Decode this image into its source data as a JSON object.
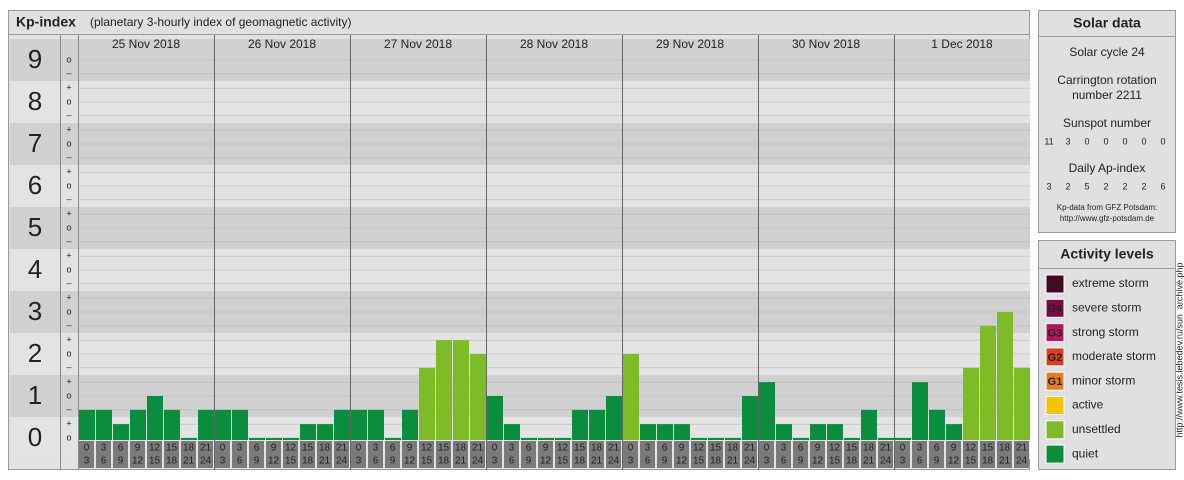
{
  "header": {
    "title": "Kp-index",
    "subtitle": "(planetary 3-hourly index of geomagnetic activity)"
  },
  "chart_data": {
    "type": "bar",
    "dates": [
      "25 Nov 2018",
      "26 Nov 2018",
      "27 Nov 2018",
      "28 Nov 2018",
      "29 Nov 2018",
      "30 Nov 2018",
      "1 Dec 2018"
    ],
    "hour_bins": [
      [
        "0",
        "3"
      ],
      [
        "3",
        "6"
      ],
      [
        "6",
        "9"
      ],
      [
        "9",
        "12"
      ],
      [
        "12",
        "15"
      ],
      [
        "15",
        "18"
      ],
      [
        "18",
        "21"
      ],
      [
        "21",
        "24"
      ]
    ],
    "values": [
      [
        0.67,
        0.67,
        0.33,
        0.67,
        1,
        0.67,
        0,
        0.67
      ],
      [
        0.67,
        0.67,
        0,
        0,
        0,
        0.33,
        0.33,
        0.67
      ],
      [
        0.67,
        0.67,
        0,
        0.67,
        1.67,
        2.33,
        2.33,
        2
      ],
      [
        1,
        0.33,
        0,
        0,
        0,
        0.67,
        0.67,
        1
      ],
      [
        2,
        0.33,
        0.33,
        0.33,
        0,
        0,
        0,
        1
      ],
      [
        1.33,
        0.33,
        0,
        0.33,
        0.33,
        0,
        0.67,
        0
      ],
      [
        0,
        1.33,
        0.67,
        0.33,
        1.67,
        2.67,
        3,
        1.67
      ]
    ],
    "colors": [
      [
        "#0b8d3e",
        "#0b8d3e",
        "#0b8d3e",
        "#0b8d3e",
        "#0b8d3e",
        "#0b8d3e",
        "#0b8d3e",
        "#0b8d3e"
      ],
      [
        "#0b8d3e",
        "#0b8d3e",
        "#0b8d3e",
        "#0b8d3e",
        "#0b8d3e",
        "#0b8d3e",
        "#0b8d3e",
        "#0b8d3e"
      ],
      [
        "#0b8d3e",
        "#0b8d3e",
        "#0b8d3e",
        "#0b8d3e",
        "#7dbc28",
        "#7dbc28",
        "#7dbc28",
        "#7dbc28"
      ],
      [
        "#0b8d3e",
        "#0b8d3e",
        "#0b8d3e",
        "#0b8d3e",
        "#0b8d3e",
        "#0b8d3e",
        "#0b8d3e",
        "#0b8d3e"
      ],
      [
        "#7dbc28",
        "#0b8d3e",
        "#0b8d3e",
        "#0b8d3e",
        "#0b8d3e",
        "#0b8d3e",
        "#0b8d3e",
        "#0b8d3e"
      ],
      [
        "#0b8d3e",
        "#0b8d3e",
        "#0b8d3e",
        "#0b8d3e",
        "#0b8d3e",
        "#0b8d3e",
        "#0b8d3e",
        "#0b8d3e"
      ],
      [
        "#0b8d3e",
        "#0b8d3e",
        "#0b8d3e",
        "#0b8d3e",
        "#7dbc28",
        "#7dbc28",
        "#7dbc28",
        "#7dbc28"
      ]
    ],
    "ylim": [
      -0.5,
      9.5
    ],
    "yticks": [
      0,
      1,
      2,
      3,
      4,
      5,
      6,
      7,
      8,
      9
    ],
    "minor_yticks": [
      {
        "value": 0,
        "label": "o"
      },
      {
        "value": 0.33,
        "label": "+"
      },
      {
        "value": 0.67,
        "label": "–"
      },
      {
        "value": 1,
        "label": "o"
      },
      {
        "value": 1.33,
        "label": "+"
      },
      {
        "value": 1.67,
        "label": "–"
      },
      {
        "value": 2,
        "label": "o"
      },
      {
        "value": 2.33,
        "label": "+"
      },
      {
        "value": 2.67,
        "label": "–"
      },
      {
        "value": 3,
        "label": "o"
      },
      {
        "value": 3.33,
        "label": "+"
      },
      {
        "value": 3.67,
        "label": "–"
      },
      {
        "value": 4,
        "label": "o"
      },
      {
        "value": 4.33,
        "label": "+"
      },
      {
        "value": 4.67,
        "label": "–"
      },
      {
        "value": 5,
        "label": "o"
      },
      {
        "value": 5.33,
        "label": "+"
      },
      {
        "value": 5.67,
        "label": "–"
      },
      {
        "value": 6,
        "label": "o"
      },
      {
        "value": 6.33,
        "label": "+"
      },
      {
        "value": 6.67,
        "label": "–"
      },
      {
        "value": 7,
        "label": "o"
      },
      {
        "value": 7.33,
        "label": "+"
      },
      {
        "value": 7.67,
        "label": "–"
      },
      {
        "value": 8,
        "label": "o"
      },
      {
        "value": 8.33,
        "label": "+"
      },
      {
        "value": 8.67,
        "label": "–"
      },
      {
        "value": 9,
        "label": "o"
      }
    ],
    "grid": true
  },
  "solar_data": {
    "title": "Solar data",
    "cycle": "Solar cycle 24",
    "carrington": [
      "Carrington rotation",
      "number 2211"
    ],
    "sunspot_label": "Sunspot number",
    "sunspot": [
      11,
      3,
      0,
      0,
      0,
      0,
      0
    ],
    "ap_label": "Daily Ap-index",
    "ap": [
      3,
      2,
      5,
      2,
      2,
      2,
      6
    ],
    "source": [
      "Kp-data from GFZ Potsdam:",
      "http://www.gfz-potsdam.de"
    ]
  },
  "activity_levels": {
    "title": "Activity levels",
    "items": [
      {
        "badge": "G5",
        "label": "extreme storm",
        "color": "#4a0424"
      },
      {
        "badge": "G4",
        "label": "severe storm",
        "color": "#7a0a46"
      },
      {
        "badge": "G3",
        "label": "strong storm",
        "color": "#b3185f"
      },
      {
        "badge": "G2",
        "label": "moderate storm",
        "color": "#d8401f"
      },
      {
        "badge": "G1",
        "label": "minor storm",
        "color": "#e57f1d"
      },
      {
        "label": "active",
        "color": "#f7c300"
      },
      {
        "label": "unsettled",
        "color": "#7dbc28"
      },
      {
        "label": "quiet",
        "color": "#0b8d3e"
      }
    ]
  },
  "credit": "http://www.tesis.lebedev.ru/sun_archive.php"
}
